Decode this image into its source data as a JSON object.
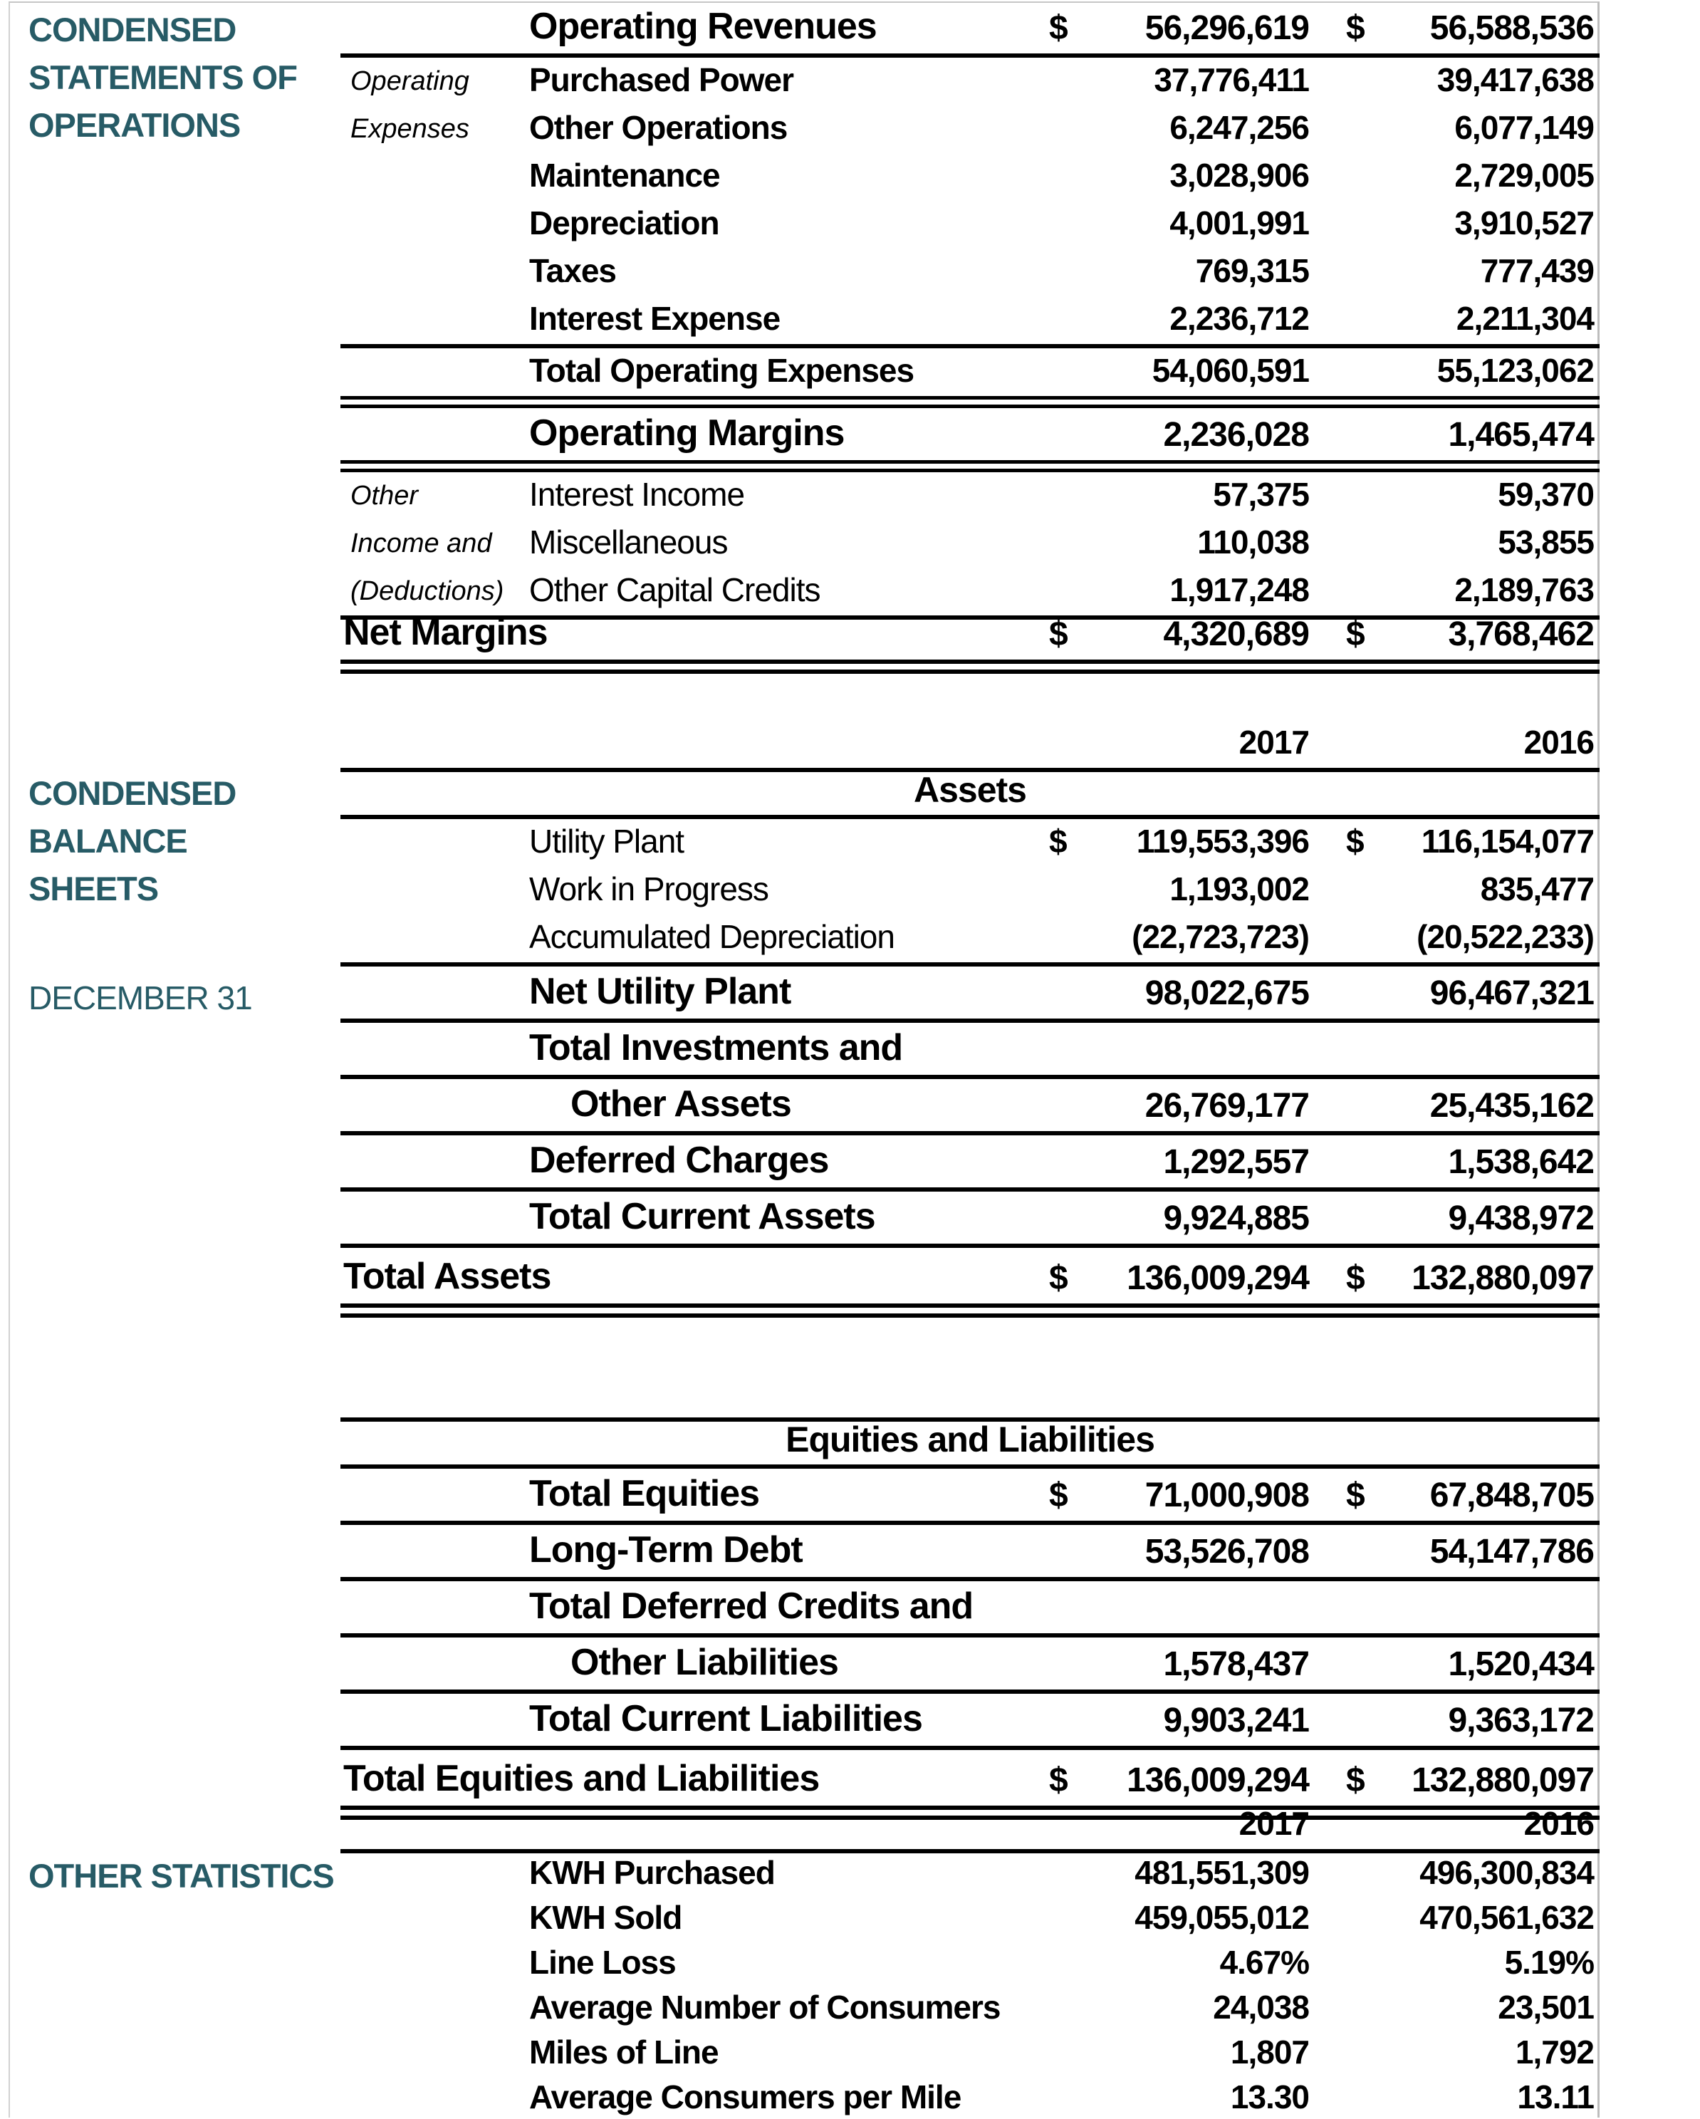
{
  "colors": {
    "accent": "#275b66",
    "rule": "#000000",
    "frame": "#c6c6c6"
  },
  "sidebar": {
    "operations_title": [
      "CONDENSED",
      "STATEMENTS OF",
      "OPERATIONS"
    ],
    "balance_title": [
      "CONDENSED",
      "BALANCE",
      "SHEETS"
    ],
    "balance_subtitle": "DECEMBER 31",
    "statistics_title": "OTHER STATISTICS"
  },
  "operations": {
    "rows": [
      {
        "label": "Operating Revenues",
        "cur1": "$",
        "v2017": "56,296,619",
        "cur2": "$",
        "v2016": "56,588,536",
        "emphasis": "large",
        "rule_below": "single"
      },
      {
        "side": "Operating",
        "label": "Purchased Power",
        "v2017": "37,776,411",
        "v2016": "39,417,638",
        "emphasis": "medium"
      },
      {
        "side": "Expenses",
        "label": "Other Operations",
        "v2017": "6,247,256",
        "v2016": "6,077,149",
        "emphasis": "medium"
      },
      {
        "label": "Maintenance",
        "v2017": "3,028,906",
        "v2016": "2,729,005",
        "emphasis": "medium"
      },
      {
        "label": "Depreciation",
        "v2017": "4,001,991",
        "v2016": "3,910,527",
        "emphasis": "medium"
      },
      {
        "label": "Taxes",
        "v2017": "769,315",
        "v2016": "777,439",
        "emphasis": "medium"
      },
      {
        "label": "Interest Expense",
        "v2017": "2,236,712",
        "v2016": "2,211,304",
        "emphasis": "medium",
        "rule_below": "single"
      },
      {
        "label": "Total Operating Expenses",
        "v2017": "54,060,591",
        "v2016": "55,123,062",
        "emphasis": "medium",
        "rule_below": "double"
      },
      {
        "label": "Operating Margins",
        "v2017": "2,236,028",
        "v2016": "1,465,474",
        "emphasis": "large",
        "rule_below": "double"
      },
      {
        "side": "Other",
        "label": "Interest Income",
        "v2017": "57,375",
        "v2016": "59,370",
        "emphasis": "plain"
      },
      {
        "side": "Income and",
        "label": "Miscellaneous",
        "v2017": "110,038",
        "v2016": "53,855",
        "emphasis": "plain"
      },
      {
        "side": "(Deductions)",
        "label": "Other Capital Credits",
        "v2017": "1,917,248",
        "v2016": "2,189,763",
        "emphasis": "plain",
        "rule_below": "single"
      },
      {
        "label": "Net Margins",
        "align": "farleft",
        "cur1": "$",
        "v2017": "4,320,689",
        "cur2": "$",
        "v2016": "3,768,462",
        "emphasis": "large",
        "rule_below": "double_thick"
      }
    ]
  },
  "balance": {
    "rows": [
      {
        "variant": "col_header",
        "v2017": "2017",
        "v2016": "2016",
        "rule_below": "single"
      },
      {
        "variant": "center_header",
        "label": "Assets",
        "rule_below": "single"
      },
      {
        "label": "Utility Plant",
        "cur1": "$",
        "v2017": "119,553,396",
        "cur2": "$",
        "v2016": "116,154,077",
        "emphasis": "plain"
      },
      {
        "label": "Work in Progress",
        "v2017": "1,193,002",
        "v2016": "835,477",
        "emphasis": "plain"
      },
      {
        "label": "Accumulated Depreciation",
        "v2017": "(22,723,723)",
        "v2016": "(20,522,233)",
        "emphasis": "plain",
        "rule_below": "single"
      },
      {
        "label": "Net Utility Plant",
        "v2017": "98,022,675",
        "v2016": "96,467,321",
        "emphasis": "large",
        "rule_below": "single"
      },
      {
        "label": "Total Investments and",
        "emphasis": "large",
        "rule_below": "single"
      },
      {
        "label": "Other Assets",
        "align": "indent",
        "v2017": "26,769,177",
        "v2016": "25,435,162",
        "emphasis": "large",
        "rule_below": "single"
      },
      {
        "label": "Deferred Charges",
        "v2017": "1,292,557",
        "v2016": "1,538,642",
        "emphasis": "large",
        "rule_below": "single"
      },
      {
        "label": "Total Current Assets",
        "v2017": "9,924,885",
        "v2016": "9,438,972",
        "emphasis": "large",
        "rule_below": "single"
      },
      {
        "label": "Total Assets",
        "align": "farleft",
        "cur1": "$",
        "v2017": "136,009,294",
        "cur2": "$",
        "v2016": "132,880,097",
        "emphasis": "large",
        "rule_below": "double_thick"
      }
    ]
  },
  "equities": {
    "rows": [
      {
        "variant": "center_header",
        "label": "Equities and Liabilities",
        "rule_above": "single",
        "rule_below": "single"
      },
      {
        "label": "Total Equities",
        "cur1": "$",
        "v2017": "71,000,908",
        "cur2": "$",
        "v2016": "67,848,705",
        "emphasis": "large",
        "rule_below": "single"
      },
      {
        "label": "Long-Term Debt",
        "v2017": "53,526,708",
        "v2016": "54,147,786",
        "emphasis": "large",
        "rule_below": "single"
      },
      {
        "label": "Total Deferred Credits and",
        "emphasis": "large",
        "rule_below": "single"
      },
      {
        "label": "Other Liabilities",
        "align": "indent",
        "v2017": "1,578,437",
        "v2016": "1,520,434",
        "emphasis": "large",
        "rule_below": "single"
      },
      {
        "label": "Total Current Liabilities",
        "v2017": "9,903,241",
        "v2016": "9,363,172",
        "emphasis": "large",
        "rule_below": "single"
      },
      {
        "label": "Total Equities and Liabilities",
        "align": "farleft",
        "cur1": "$",
        "v2017": "136,009,294",
        "cur2": "$",
        "v2016": "132,880,097",
        "emphasis": "large",
        "rule_below": "double_thick"
      }
    ]
  },
  "statistics": {
    "rows": [
      {
        "variant": "col_header",
        "v2017": "2017",
        "v2016": "2016",
        "rule_below": "single"
      },
      {
        "label": "KWH Purchased",
        "v2017": "481,551,309",
        "v2016": "496,300,834",
        "emphasis": "medium"
      },
      {
        "label": "KWH Sold",
        "v2017": "459,055,012",
        "v2016": "470,561,632",
        "emphasis": "medium"
      },
      {
        "label": "Line Loss",
        "v2017": "4.67%",
        "v2016": "5.19%",
        "emphasis": "medium"
      },
      {
        "label": "Average Number of Consumers",
        "v2017": "24,038",
        "v2016": "23,501",
        "emphasis": "medium"
      },
      {
        "label": "Miles of Line",
        "v2017": "1,807",
        "v2016": "1,792",
        "emphasis": "medium"
      },
      {
        "label": "Average Consumers per Mile",
        "v2017": "13.30",
        "v2016": "13.11",
        "emphasis": "medium"
      }
    ]
  }
}
